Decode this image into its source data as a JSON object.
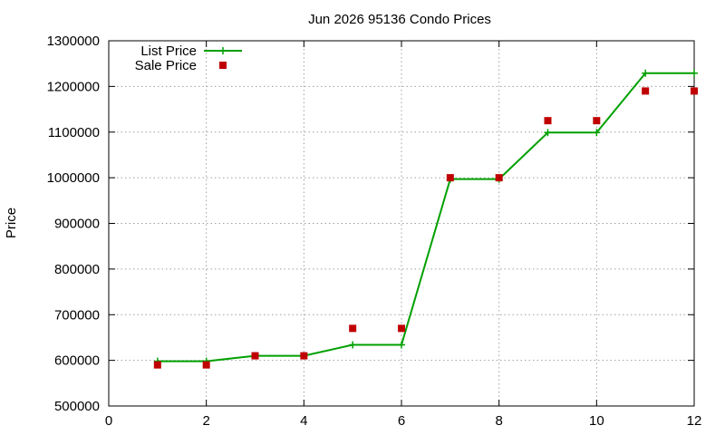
{
  "chart_data": {
    "type": "line",
    "title": "Jun 2026 95136 Condo Prices",
    "xlabel": "",
    "ylabel": "Price",
    "xlim": [
      0,
      12
    ],
    "ylim": [
      500000,
      1300000
    ],
    "xticks": [
      0,
      2,
      4,
      6,
      8,
      10,
      12
    ],
    "yticks": [
      500000,
      600000,
      700000,
      800000,
      900000,
      1000000,
      1100000,
      1200000,
      1300000
    ],
    "grid": true,
    "legend_position": "top-left",
    "x": [
      1,
      2,
      3,
      4,
      5,
      6,
      7,
      8,
      9,
      10,
      11,
      12
    ],
    "series": [
      {
        "name": "List Price",
        "style": "line-plus",
        "color": "#00a000",
        "values": [
          598000,
          598000,
          610000,
          610000,
          634000,
          634000,
          997000,
          997000,
          1099000,
          1099000,
          1229000,
          1229000
        ]
      },
      {
        "name": "Sale Price",
        "style": "square-points",
        "color": "#c00000",
        "values": [
          590000,
          590000,
          610000,
          610000,
          670000,
          670000,
          1000000,
          1000000,
          1125000,
          1125000,
          1190000,
          1190000
        ]
      }
    ]
  }
}
